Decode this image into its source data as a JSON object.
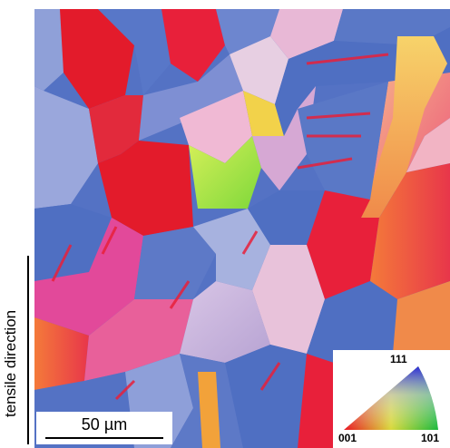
{
  "image": {
    "scale_bar_label": "50 µm",
    "axis_label": "tensile direction",
    "legend": {
      "type": "inverse pole figure triangle",
      "corners": [
        "001",
        "101",
        "111"
      ],
      "corner_colors": {
        "001": "#e8131f",
        "101": "#18b83a",
        "111": "#2a2ad6"
      }
    },
    "palette": {
      "blue": "#4f6fc2",
      "red": "#e31b2b",
      "pink": "#e06a98",
      "orange": "#f07a3a",
      "light_blue": "#9aa9dd",
      "lavender": "#c9b4d8",
      "yellow": "#f2d14a",
      "green": "#a8e23a"
    }
  }
}
